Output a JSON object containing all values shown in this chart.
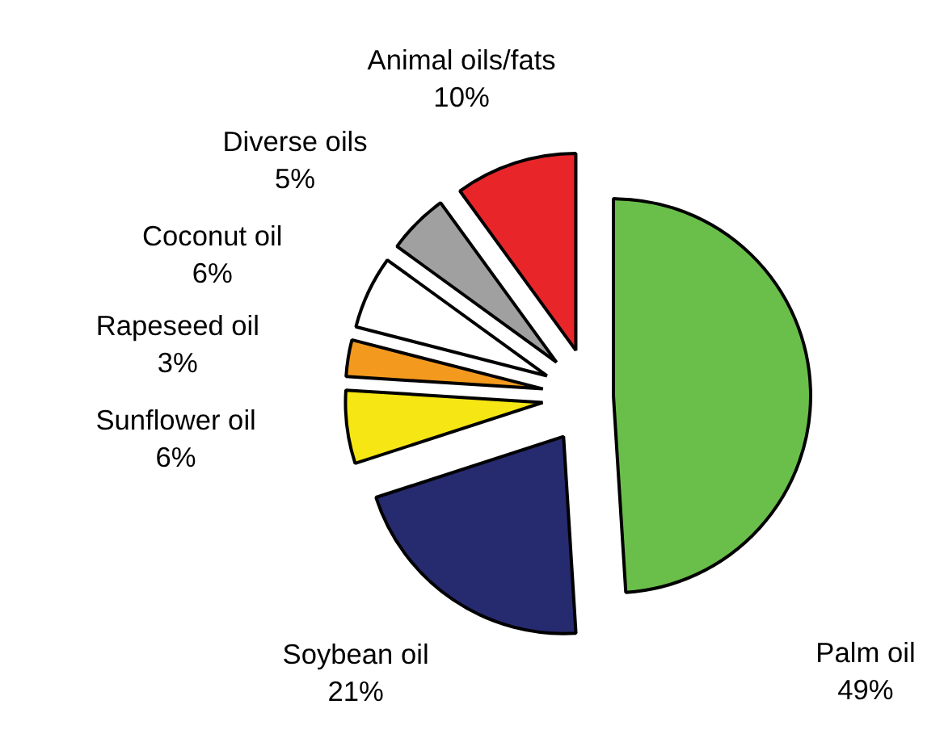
{
  "chart_data": {
    "type": "pie",
    "categories": [
      "Palm oil",
      "Soybean oil",
      "Sunflower oil",
      "Rapeseed oil",
      "Coconut oil",
      "Diverse oils",
      "Animal oils/fats"
    ],
    "values": [
      49,
      21,
      6,
      3,
      6,
      5,
      10
    ],
    "colors": [
      "#6abf4b",
      "#262a6e",
      "#f5e614",
      "#f39a1e",
      "#ffffff",
      "#a0a0a0",
      "#e8262a"
    ],
    "value_labels": [
      "49%",
      "21%",
      "6%",
      "3%",
      "6%",
      "5%",
      "10%"
    ]
  }
}
